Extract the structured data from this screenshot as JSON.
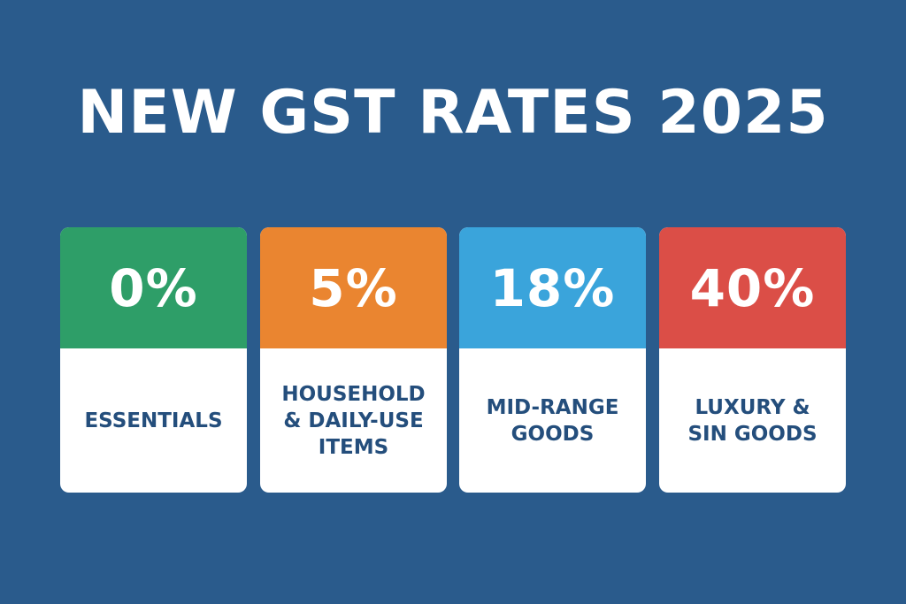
{
  "title": "NEW GST RATES 2025",
  "colors": {
    "background": "#2a5b8c",
    "label_text": "#244e7c"
  },
  "cards": [
    {
      "rate": "0%",
      "label": "ESSENTIALS",
      "color": "#2e9e68"
    },
    {
      "rate": "5%",
      "label": "HOUSEHOLD\n& DAILY-USE\nITEMS",
      "color": "#ea8530"
    },
    {
      "rate": "18%",
      "label": "MID-RANGE\nGOODS",
      "color": "#3aa4db"
    },
    {
      "rate": "40%",
      "label": "LUXURY &\nSIN GOODS",
      "color": "#db4e47"
    }
  ]
}
